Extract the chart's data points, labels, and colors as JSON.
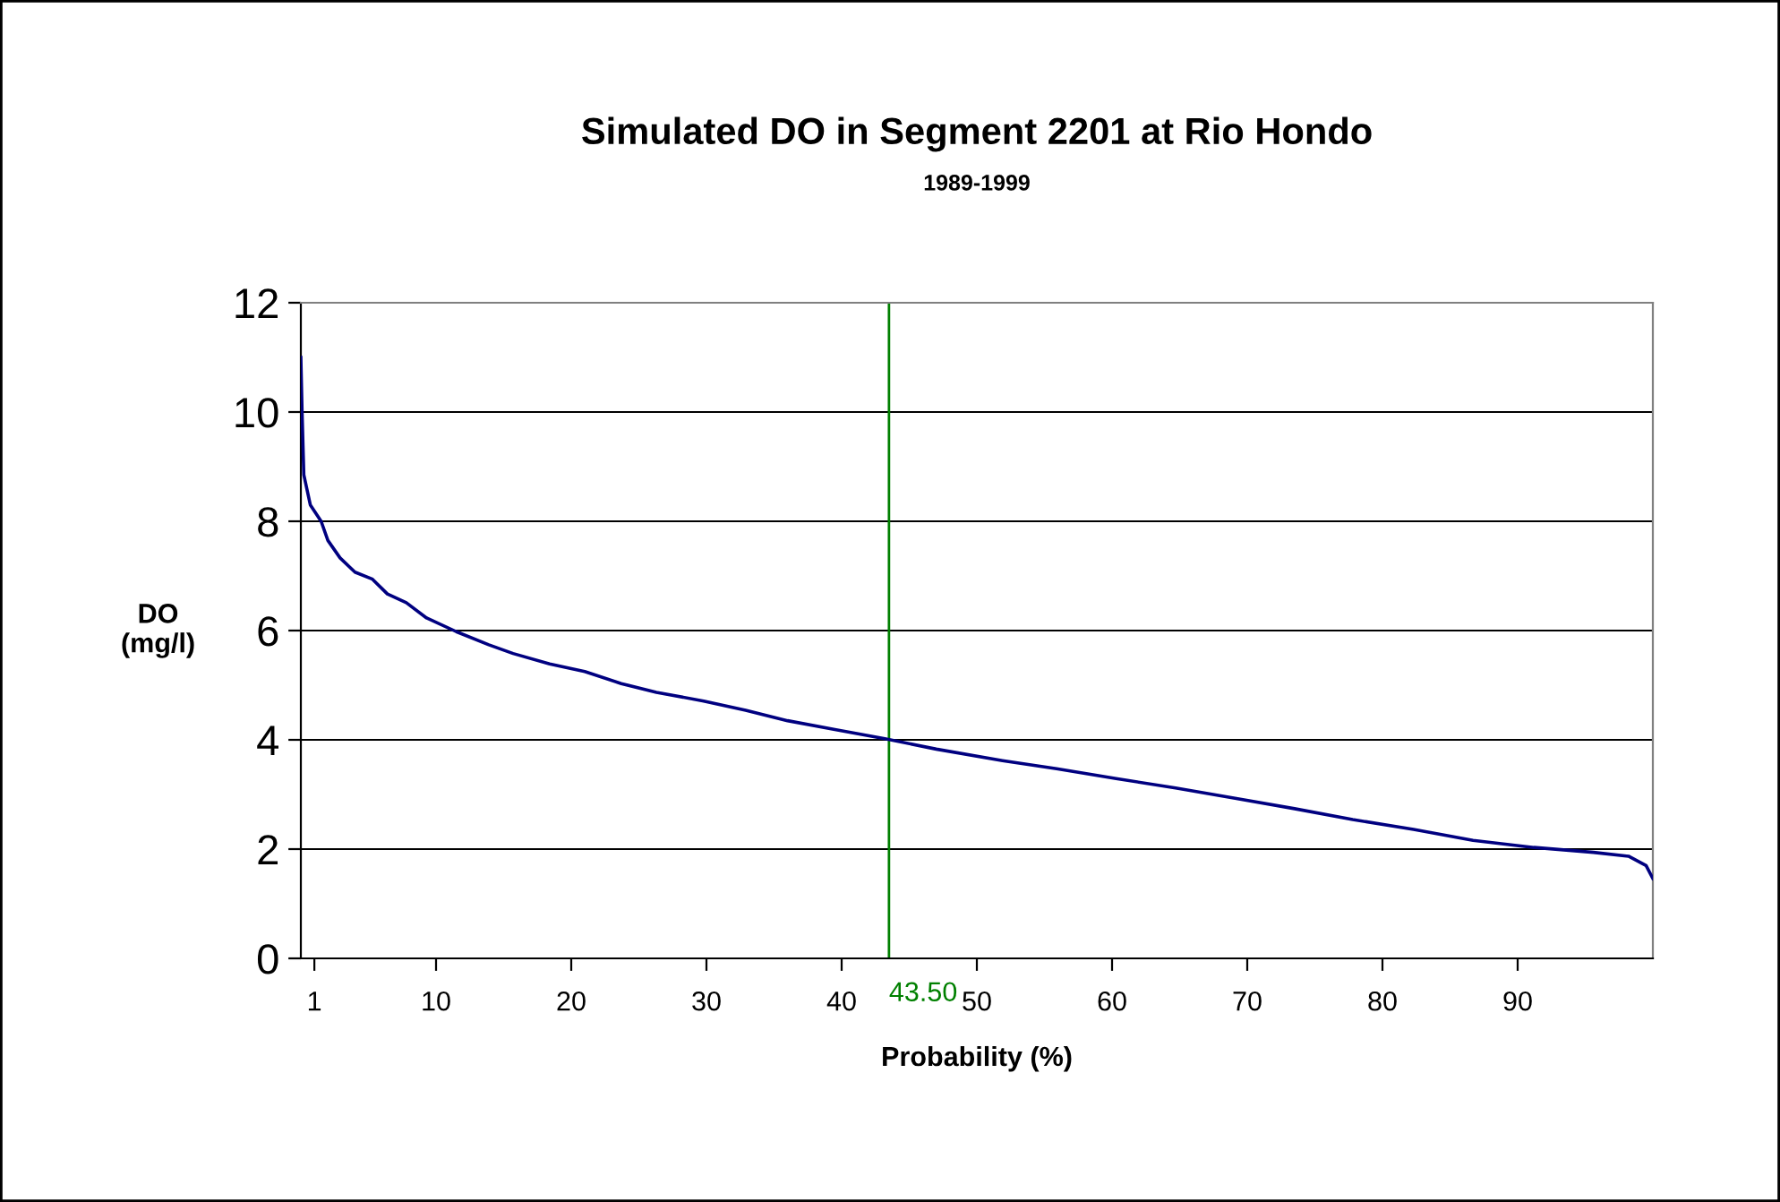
{
  "chart_data": {
    "type": "line",
    "title": "Simulated DO in Segment 2201 at Rio Hondo",
    "subtitle": "1989-1999",
    "xlabel": "Probability (%)",
    "ylabel": "DO\n(mg/l)",
    "x": [
      0,
      0.09,
      0.22,
      0.7,
      1.5,
      2.0,
      2.9,
      4.0,
      5.3,
      6.4,
      7.8,
      9.3,
      11.5,
      13.9,
      15.7,
      18.4,
      21.0,
      23.7,
      26.3,
      29.8,
      32.9,
      36.0,
      39.5,
      43.2,
      47.0,
      51.9,
      55.9,
      60.3,
      64.7,
      69.1,
      73.5,
      77.8,
      82.3,
      86.7,
      91.2,
      95.6,
      98.2,
      99.5,
      100
    ],
    "series": [
      {
        "color": "#000080",
        "values": [
          11.0,
          10.0,
          8.85,
          8.3,
          8.0,
          7.65,
          7.33,
          7.07,
          6.94,
          6.67,
          6.51,
          6.23,
          5.98,
          5.74,
          5.58,
          5.39,
          5.25,
          5.03,
          4.87,
          4.71,
          4.54,
          4.35,
          4.19,
          4.02,
          3.83,
          3.62,
          3.47,
          3.29,
          3.12,
          2.93,
          2.74,
          2.54,
          2.36,
          2.16,
          2.03,
          1.94,
          1.87,
          1.7,
          1.46
        ]
      }
    ],
    "xlim": [
      0,
      100
    ],
    "xticks": [
      1,
      10,
      20,
      30,
      40,
      50,
      60,
      70,
      80,
      90
    ],
    "ylim": [
      0,
      12
    ],
    "yticks": [
      0,
      2,
      4,
      6,
      8,
      10,
      12
    ],
    "grid": "y",
    "legend": false,
    "marker": "none",
    "line_style": "solid",
    "ref_lines": [
      {
        "axis": "x",
        "value": 43.5,
        "label": "43.50",
        "color": "#008000"
      }
    ]
  }
}
